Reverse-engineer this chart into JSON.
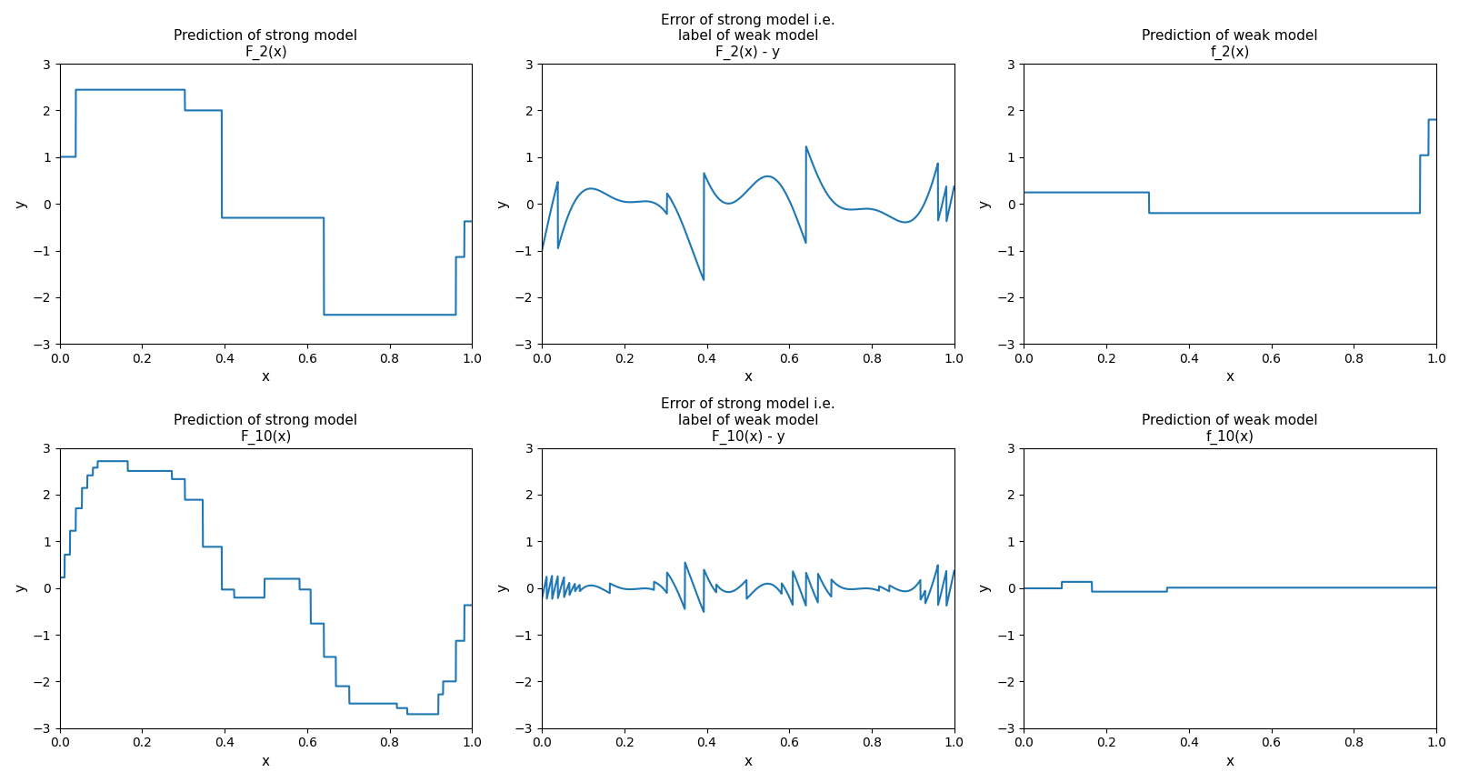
{
  "title_strong_2": "Prediction of strong model\nF_2(x)",
  "title_error_2": "Error of strong model i.e.\nlabel of weak model\nF_2(x) - y",
  "title_weak_2": "Prediction of weak model\nf_2(x)",
  "title_strong_10": "Prediction of strong model\nF_10(x)",
  "title_error_10": "Error of strong model i.e.\nlabel of weak model\nF_10(x) - y",
  "title_weak_10": "Prediction of weak model\nf_10(x)",
  "xlabel": "x",
  "ylabel": "y",
  "ylim": [
    -3,
    3
  ],
  "xlim": [
    0.0,
    1.0
  ],
  "line_color": "#1f77b4",
  "n_points": 2000
}
